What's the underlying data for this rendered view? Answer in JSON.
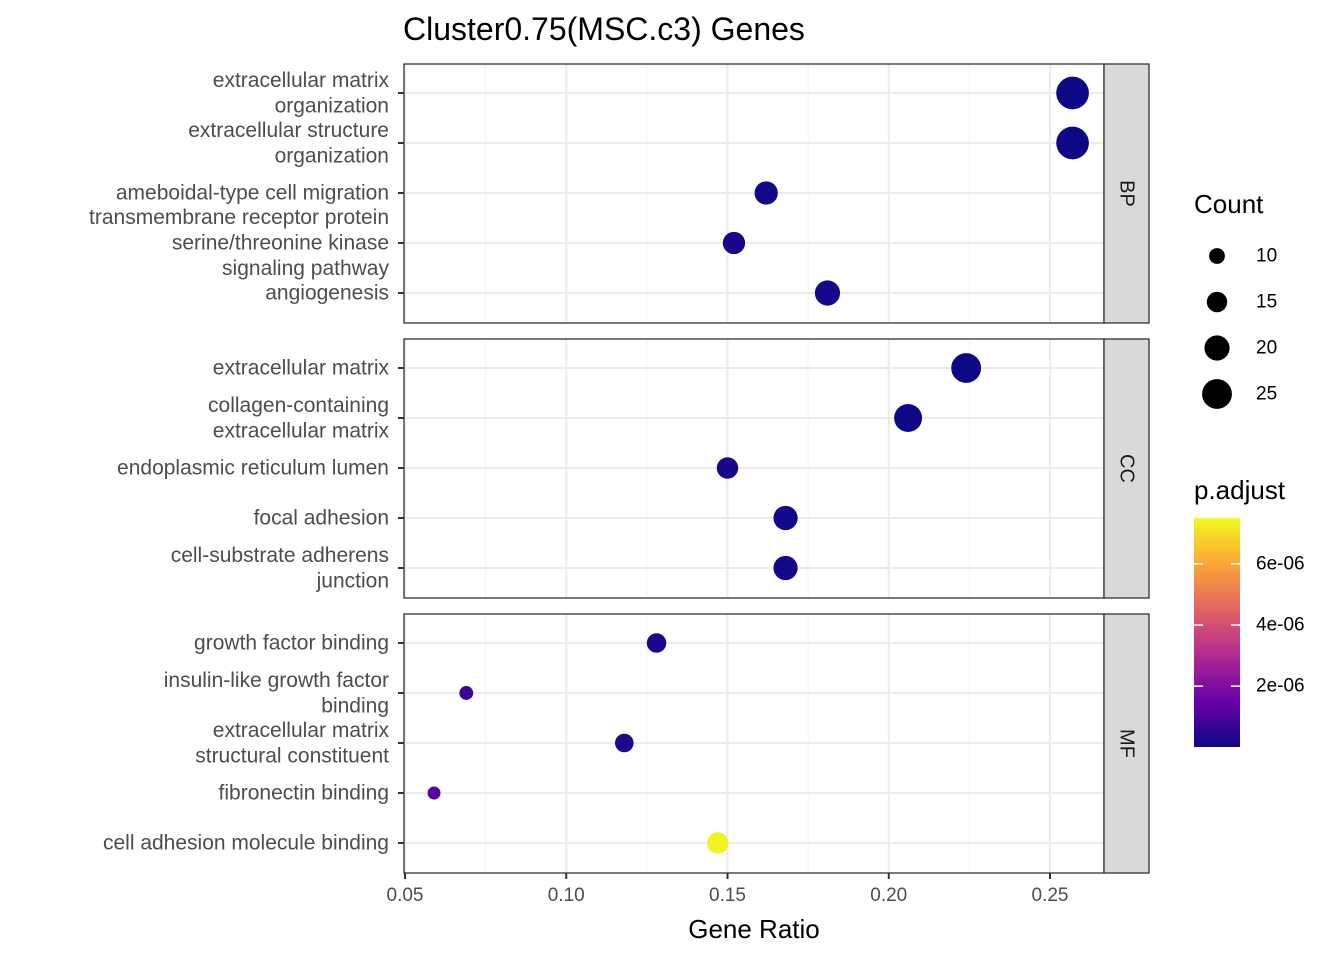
{
  "chart_data": {
    "type": "scatter",
    "title": "Cluster0.75(MSC.c3) Genes",
    "xlabel": "Gene Ratio",
    "xlim": [
      0.05,
      0.28
    ],
    "xticks": [
      "0.05",
      "0.10",
      "0.15",
      "0.20",
      "0.25"
    ],
    "xtick_values": [
      0.05,
      0.1,
      0.15,
      0.2,
      0.25
    ],
    "grid": true,
    "facets": [
      {
        "name": "BP",
        "terms": [
          {
            "label": "extracellular matrix organization",
            "lines": [
              "extracellular matrix",
              "organization"
            ],
            "x": 0.257,
            "count": 28,
            "p_adjust": 2e-08
          },
          {
            "label": "extracellular structure organization",
            "lines": [
              "extracellular structure",
              "organization"
            ],
            "x": 0.257,
            "count": 28,
            "p_adjust": 2e-08
          },
          {
            "label": "ameboidal-type cell migration",
            "lines": [
              "ameboidal-type cell migration"
            ],
            "x": 0.162,
            "count": 18,
            "p_adjust": 1e-07
          },
          {
            "label": "transmembrane receptor protein serine/threonine kinase signaling pathway",
            "lines": [
              "transmembrane receptor protein",
              "serine/threonine kinase",
              "signaling pathway"
            ],
            "x": 0.152,
            "count": 17,
            "p_adjust": 2e-07
          },
          {
            "label": "angiogenesis",
            "lines": [
              "angiogenesis"
            ],
            "x": 0.181,
            "count": 20,
            "p_adjust": 1e-07
          }
        ]
      },
      {
        "name": "CC",
        "terms": [
          {
            "label": "extracellular matrix",
            "lines": [
              "extracellular matrix"
            ],
            "x": 0.224,
            "count": 25,
            "p_adjust": 2e-08
          },
          {
            "label": "collagen-containing extracellular matrix",
            "lines": [
              "collagen-containing",
              "extracellular matrix"
            ],
            "x": 0.206,
            "count": 23,
            "p_adjust": 3e-08
          },
          {
            "label": "endoplasmic reticulum lumen",
            "lines": [
              "endoplasmic reticulum lumen"
            ],
            "x": 0.15,
            "count": 16,
            "p_adjust": 2e-07
          },
          {
            "label": "focal adhesion",
            "lines": [
              "focal adhesion"
            ],
            "x": 0.168,
            "count": 19,
            "p_adjust": 1e-07
          },
          {
            "label": "cell-substrate adherens junction",
            "lines": [
              "cell-substrate adherens",
              "junction"
            ],
            "x": 0.168,
            "count": 19,
            "p_adjust": 1e-07
          }
        ]
      },
      {
        "name": "MF",
        "terms": [
          {
            "label": "growth factor binding",
            "lines": [
              "growth factor binding"
            ],
            "x": 0.128,
            "count": 14,
            "p_adjust": 3e-07
          },
          {
            "label": "insulin-like growth factor binding",
            "lines": [
              "insulin-like growth factor",
              "binding"
            ],
            "x": 0.069,
            "count": 8,
            "p_adjust": 8e-07
          },
          {
            "label": "extracellular matrix structural constituent",
            "lines": [
              "extracellular matrix",
              "structural constituent"
            ],
            "x": 0.118,
            "count": 13,
            "p_adjust": 3e-07
          },
          {
            "label": "fibronectin binding",
            "lines": [
              "fibronectin binding"
            ],
            "x": 0.059,
            "count": 7,
            "p_adjust": 1.2e-06
          },
          {
            "label": "cell adhesion molecule binding",
            "lines": [
              "cell adhesion molecule binding"
            ],
            "x": 0.147,
            "count": 16,
            "p_adjust": 7.4e-06
          }
        ]
      }
    ],
    "size_legend": {
      "title": "Count",
      "values": [
        10,
        15,
        20,
        25
      ],
      "labels": [
        "10",
        "15",
        "20",
        "25"
      ]
    },
    "color_legend": {
      "title": "p.adjust",
      "range": [
        1e-08,
        7.5e-06
      ],
      "ticks": [
        2e-06,
        4e-06,
        6e-06
      ],
      "tick_labels": [
        "2e-06",
        "4e-06",
        "6e-06"
      ],
      "colors": [
        "#0d0887",
        "#6a00a8",
        "#b12a90",
        "#e16462",
        "#fca636",
        "#f0f921"
      ]
    },
    "legend_position": "right"
  }
}
